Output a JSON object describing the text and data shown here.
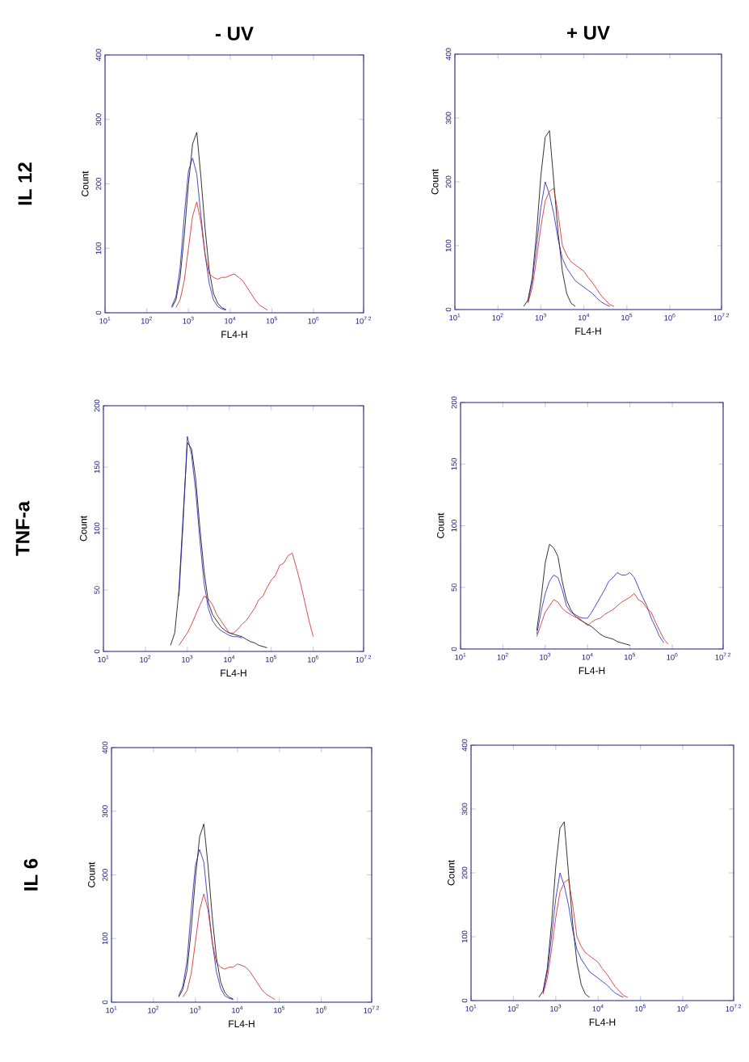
{
  "chart_data": [
    {
      "type": "line",
      "title": "- UV",
      "xlabel": "FL4-H",
      "ylabel": "Count",
      "annotations": [
        "IL 12"
      ],
      "log": "x",
      "xlim": [
        10,
        15848932
      ],
      "ylim": [
        0,
        400
      ],
      "yticks": [
        0,
        100,
        200,
        300,
        400
      ],
      "xticks": [
        {
          "value": 10,
          "label": "10$^{1}$"
        },
        {
          "value": 100,
          "label": "10$^{2}$"
        },
        {
          "value": 1000,
          "label": "10$^{3}$"
        },
        {
          "value": 10000,
          "label": "10$^{4}$"
        },
        {
          "value": 100000,
          "label": "10$^{5}$"
        },
        {
          "value": 1000000,
          "label": "10$^{6}$"
        },
        {
          "value": 15848932,
          "label": "10$^{7.2}$"
        }
      ],
      "x": [
        398,
        501,
        631,
        794,
        1000,
        1259,
        1585,
        1995,
        2512,
        3162,
        3981,
        5012,
        6310,
        7943,
        10000,
        12589,
        15849,
        19953,
        25119,
        31623,
        39811,
        50119,
        63096,
        79433
      ],
      "series": [
        {
          "color": "#000000",
          "values": [
            8,
            20,
            55,
            120,
            200,
            262,
            280,
            210,
            130,
            65,
            30,
            15,
            8,
            5,
            null,
            null,
            null,
            null,
            null,
            null,
            null,
            null,
            null,
            null
          ]
        },
        {
          "color": "#2020c0",
          "values": [
            10,
            25,
            70,
            150,
            220,
            240,
            215,
            150,
            90,
            45,
            20,
            10,
            6,
            4,
            null,
            null,
            null,
            null,
            null,
            null,
            null,
            null,
            null,
            null
          ]
        },
        {
          "color": "#d42020",
          "values": [
            null,
            8,
            20,
            50,
            100,
            150,
            172,
            140,
            90,
            60,
            55,
            52,
            55,
            55,
            58,
            60,
            55,
            50,
            40,
            30,
            20,
            12,
            8,
            4
          ]
        }
      ]
    },
    {
      "type": "line",
      "title": "+ UV",
      "xlabel": "FL4-H",
      "ylabel": "Count",
      "log": "x",
      "xlim": [
        10,
        15848932
      ],
      "ylim": [
        0,
        400
      ],
      "yticks": [
        0,
        100,
        200,
        300,
        400
      ],
      "xticks": [
        {
          "value": 10,
          "label": "10$^{1}$"
        },
        {
          "value": 100,
          "label": "10$^{2}$"
        },
        {
          "value": 1000,
          "label": "10$^{3}$"
        },
        {
          "value": 10000,
          "label": "10$^{4}$"
        },
        {
          "value": 100000,
          "label": "10$^{5}$"
        },
        {
          "value": 1000000,
          "label": "10$^{6}$"
        },
        {
          "value": 15848932,
          "label": "10$^{7.2}$"
        }
      ],
      "x": [
        398,
        501,
        631,
        794,
        1000,
        1259,
        1585,
        1995,
        2512,
        3162,
        3981,
        5012,
        6310,
        7943,
        10000,
        12589,
        15849,
        19953,
        25119,
        31623,
        39811,
        50119
      ],
      "series": [
        {
          "color": "#000000",
          "values": [
            5,
            15,
            50,
            120,
            210,
            270,
            280,
            200,
            120,
            60,
            25,
            10,
            5,
            null,
            null,
            null,
            null,
            null,
            null,
            null,
            null,
            null
          ]
        },
        {
          "color": "#2020c0",
          "values": [
            null,
            12,
            45,
            100,
            160,
            200,
            180,
            150,
            110,
            80,
            65,
            55,
            45,
            40,
            35,
            30,
            25,
            18,
            12,
            8,
            5,
            null
          ]
        },
        {
          "color": "#d42020",
          "values": [
            null,
            10,
            35,
            80,
            130,
            170,
            185,
            190,
            150,
            100,
            85,
            75,
            70,
            65,
            60,
            50,
            42,
            32,
            22,
            15,
            8,
            5
          ]
        }
      ]
    },
    {
      "type": "line",
      "xlabel": "FL4-H",
      "ylabel": "Count",
      "annotations": [
        "TNF-a"
      ],
      "log": "x",
      "xlim": [
        10,
        15848932
      ],
      "ylim": [
        0,
        200
      ],
      "yticks": [
        0,
        50,
        100,
        150,
        200
      ],
      "xticks": [
        {
          "value": 10,
          "label": "10$^{1}$"
        },
        {
          "value": 100,
          "label": "10$^{2}$"
        },
        {
          "value": 1000,
          "label": "10$^{3}$"
        },
        {
          "value": 10000,
          "label": "10$^{4}$"
        },
        {
          "value": 100000,
          "label": "10$^{5}$"
        },
        {
          "value": 1000000,
          "label": "10$^{6}$"
        },
        {
          "value": 15848932,
          "label": "10$^{7.2}$"
        }
      ],
      "x": [
        398,
        501,
        631,
        794,
        1000,
        1259,
        1585,
        1995,
        2512,
        3162,
        3981,
        5012,
        6310,
        7943,
        10000,
        12589,
        15849,
        19953,
        25119,
        31623,
        39811,
        50119,
        63096,
        79433,
        100000,
        125893,
        158489,
        199526,
        251189,
        316228,
        398107,
        501187,
        630957,
        794328,
        1000000
      ],
      "series": [
        {
          "color": "#000000",
          "values": [
            5,
            15,
            50,
            110,
            170,
            165,
            140,
            100,
            65,
            40,
            30,
            25,
            20,
            17,
            15,
            14,
            13,
            12,
            10,
            8,
            7,
            5,
            4,
            3,
            null,
            null,
            null,
            null,
            null,
            null,
            null,
            null,
            null,
            null,
            null
          ]
        },
        {
          "color": "#2020c0",
          "values": [
            null,
            null,
            45,
            105,
            175,
            160,
            130,
            90,
            55,
            35,
            25,
            20,
            17,
            15,
            13,
            12,
            12,
            11,
            null,
            null,
            null,
            null,
            null,
            null,
            null,
            null,
            null,
            null,
            null,
            null,
            null,
            null,
            null,
            null,
            null
          ]
        },
        {
          "color": "#d42020",
          "values": [
            null,
            null,
            5,
            10,
            15,
            22,
            30,
            38,
            45,
            43,
            38,
            30,
            25,
            20,
            15,
            15,
            18,
            22,
            25,
            30,
            35,
            42,
            45,
            52,
            58,
            62,
            70,
            72,
            78,
            80,
            68,
            55,
            40,
            25,
            12
          ]
        }
      ]
    },
    {
      "type": "line",
      "xlabel": "FL4-H",
      "ylabel": "Count",
      "log": "x",
      "xlim": [
        10,
        15848932
      ],
      "ylim": [
        0,
        200
      ],
      "yticks": [
        0,
        50,
        100,
        150,
        200
      ],
      "xticks": [
        {
          "value": 10,
          "label": "10$^{1}$"
        },
        {
          "value": 100,
          "label": "10$^{2}$"
        },
        {
          "value": 1000,
          "label": "10$^{3}$"
        },
        {
          "value": 10000,
          "label": "10$^{4}$"
        },
        {
          "value": 100000,
          "label": "10$^{5}$"
        },
        {
          "value": 1000000,
          "label": "10$^{6}$"
        },
        {
          "value": 15848932,
          "label": "10$^{7.2}$"
        }
      ],
      "x": [
        631,
        794,
        1000,
        1259,
        1585,
        1995,
        2512,
        3162,
        3981,
        5012,
        6310,
        7943,
        10000,
        12589,
        15849,
        19953,
        25119,
        31623,
        39811,
        50119,
        63096,
        79433,
        100000,
        125893,
        158489,
        199526,
        251189,
        316228,
        398107,
        501187,
        630957,
        794328
      ],
      "series": [
        {
          "color": "#000000",
          "values": [
            15,
            40,
            70,
            85,
            82,
            75,
            55,
            40,
            32,
            27,
            24,
            22,
            20,
            18,
            15,
            12,
            10,
            9,
            8,
            6,
            5,
            4,
            3,
            null,
            null,
            null,
            null,
            null,
            null,
            null,
            null,
            null
          ]
        },
        {
          "color": "#2020c0",
          "values": [
            12,
            30,
            45,
            55,
            60,
            58,
            48,
            35,
            30,
            28,
            26,
            25,
            25,
            30,
            36,
            42,
            48,
            55,
            58,
            62,
            60,
            60,
            62,
            58,
            50,
            42,
            35,
            25,
            18,
            10,
            5,
            null
          ]
        },
        {
          "color": "#d42020",
          "values": [
            10,
            20,
            30,
            35,
            40,
            38,
            33,
            30,
            28,
            26,
            25,
            22,
            19,
            22,
            24,
            25,
            28,
            30,
            32,
            35,
            38,
            40,
            42,
            45,
            40,
            38,
            33,
            30,
            22,
            15,
            8,
            4
          ]
        }
      ]
    },
    {
      "type": "line",
      "xlabel": "FL4-H",
      "ylabel": "Count",
      "annotations": [
        "IL 6"
      ],
      "log": "x",
      "xlim": [
        10,
        15848932
      ],
      "ylim": [
        0,
        400
      ],
      "yticks": [
        0,
        100,
        200,
        300,
        400
      ],
      "xticks": [
        {
          "value": 10,
          "label": "10$^{1}$"
        },
        {
          "value": 100,
          "label": "10$^{2}$"
        },
        {
          "value": 1000,
          "label": "10$^{3}$"
        },
        {
          "value": 10000,
          "label": "10$^{4}$"
        },
        {
          "value": 100000,
          "label": "10$^{5}$"
        },
        {
          "value": 1000000,
          "label": "10$^{6}$"
        },
        {
          "value": 15848932,
          "label": "10$^{7.2}$"
        }
      ],
      "x": [
        398,
        501,
        631,
        794,
        1000,
        1259,
        1585,
        1995,
        2512,
        3162,
        3981,
        5012,
        6310,
        7943,
        10000,
        12589,
        15849,
        19953,
        25119,
        31623,
        39811,
        50119,
        63096,
        79433
      ],
      "series": [
        {
          "color": "#000000",
          "values": [
            8,
            20,
            50,
            115,
            195,
            260,
            280,
            215,
            135,
            70,
            32,
            15,
            8,
            5,
            null,
            null,
            null,
            null,
            null,
            null,
            null,
            null,
            null,
            null
          ]
        },
        {
          "color": "#2020c0",
          "values": [
            10,
            25,
            65,
            145,
            215,
            240,
            220,
            155,
            95,
            48,
            22,
            10,
            6,
            4,
            null,
            null,
            null,
            null,
            null,
            null,
            null,
            null,
            null,
            null
          ]
        },
        {
          "color": "#d42020",
          "values": [
            null,
            8,
            18,
            45,
            95,
            145,
            170,
            145,
            95,
            62,
            55,
            52,
            55,
            55,
            60,
            58,
            55,
            48,
            38,
            28,
            18,
            12,
            8,
            4
          ]
        }
      ]
    },
    {
      "type": "line",
      "xlabel": "FL4-H",
      "ylabel": "Count",
      "log": "x",
      "xlim": [
        10,
        15848932
      ],
      "ylim": [
        0,
        400
      ],
      "yticks": [
        0,
        100,
        200,
        300,
        400
      ],
      "xticks": [
        {
          "value": 10,
          "label": "10$^{1}$"
        },
        {
          "value": 100,
          "label": "10$^{2}$"
        },
        {
          "value": 1000,
          "label": "10$^{3}$"
        },
        {
          "value": 10000,
          "label": "10$^{4}$"
        },
        {
          "value": 100000,
          "label": "10$^{5}$"
        },
        {
          "value": 1000000,
          "label": "10$^{6}$"
        },
        {
          "value": 15848932,
          "label": "10$^{7.2}$"
        }
      ],
      "x": [
        398,
        501,
        631,
        794,
        1000,
        1259,
        1585,
        1995,
        2512,
        3162,
        3981,
        5012,
        6310,
        7943,
        10000,
        12589,
        15849,
        19953,
        25119,
        31623,
        39811,
        50119
      ],
      "series": [
        {
          "color": "#000000",
          "values": [
            5,
            15,
            50,
            120,
            210,
            270,
            280,
            200,
            120,
            60,
            25,
            10,
            5,
            null,
            null,
            null,
            null,
            null,
            null,
            null,
            null,
            null
          ]
        },
        {
          "color": "#2020c0",
          "values": [
            null,
            12,
            45,
            100,
            160,
            200,
            180,
            150,
            110,
            80,
            65,
            55,
            45,
            40,
            35,
            30,
            25,
            18,
            12,
            8,
            5,
            null
          ]
        },
        {
          "color": "#d42020",
          "values": [
            null,
            10,
            35,
            80,
            130,
            170,
            185,
            190,
            150,
            100,
            85,
            75,
            70,
            65,
            60,
            50,
            42,
            32,
            22,
            15,
            8,
            5
          ]
        }
      ]
    }
  ]
}
